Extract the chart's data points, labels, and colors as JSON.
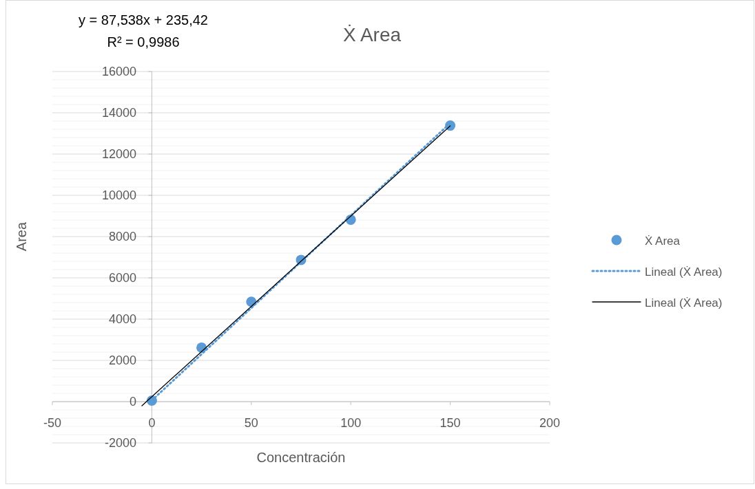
{
  "chart_data": {
    "type": "scatter",
    "title": "Ẋ Area",
    "xlabel": "Concentración",
    "ylabel": "Area",
    "annotations": [
      "y = 87,538x + 235,42",
      "R² = 0,9986"
    ],
    "x": [
      0,
      25,
      50,
      75,
      100,
      150
    ],
    "series": [
      {
        "name": "Ẋ Area",
        "color": "#5b9bd5",
        "marker": "circle",
        "values": [
          50,
          2620,
          4840,
          6870,
          8820,
          13380
        ]
      },
      {
        "name": "Lineal (Ẋ Area)",
        "type": "line",
        "color": "#5b9bd5",
        "line_style": "dotted",
        "marker": "none",
        "x": [
          0,
          150
        ],
        "values": [
          60,
          13500
        ]
      },
      {
        "name": "Lineal (Ẋ Area)",
        "type": "line",
        "color": "#000000",
        "line_style": "solid",
        "marker": "none",
        "x": [
          -5,
          150
        ],
        "values": [
          -200,
          13370
        ]
      }
    ],
    "xlim": [
      -50,
      200
    ],
    "xticks": [
      -50,
      0,
      50,
      100,
      150,
      200
    ],
    "ylim": [
      -2000,
      16000
    ],
    "yticks": [
      -2000,
      {
        "value": -1600,
        "label": null
      },
      {
        "value": -1200,
        "label": null
      },
      {
        "value": -800,
        "label": null
      },
      {
        "value": -400,
        "label": null
      },
      0,
      {
        "value": 400,
        "label": null
      },
      {
        "value": 800,
        "label": null
      },
      {
        "value": 1200,
        "label": null
      },
      {
        "value": 1600,
        "label": null
      },
      2000,
      {
        "value": 2400,
        "label": null
      },
      {
        "value": 2800,
        "label": null
      },
      {
        "value": 3200,
        "label": null
      },
      {
        "value": 3600,
        "label": null
      },
      4000,
      {
        "value": 4400,
        "label": null
      },
      {
        "value": 4800,
        "label": null
      },
      {
        "value": 5200,
        "label": null
      },
      {
        "value": 5600,
        "label": null
      },
      6000,
      {
        "value": 6400,
        "label": null
      },
      {
        "value": 6800,
        "label": null
      },
      {
        "value": 7200,
        "label": null
      },
      {
        "value": 7600,
        "label": null
      },
      8000,
      {
        "value": 8400,
        "label": null
      },
      {
        "value": 8800,
        "label": null
      },
      {
        "value": 9200,
        "label": null
      },
      {
        "value": 9600,
        "label": null
      },
      10000,
      {
        "value": 10400,
        "label": null
      },
      {
        "value": 10800,
        "label": null
      },
      {
        "value": 11200,
        "label": null
      },
      {
        "value": 11600,
        "label": null
      },
      12000,
      {
        "value": 12400,
        "label": null
      },
      {
        "value": 12800,
        "label": null
      },
      {
        "value": 13200,
        "label": null
      },
      {
        "value": 13600,
        "label": null
      },
      14000,
      {
        "value": 14400,
        "label": null
      },
      {
        "value": 14800,
        "label": null
      },
      {
        "value": 15200,
        "label": null
      },
      {
        "value": 15600,
        "label": null
      },
      16000
    ],
    "grid": "y",
    "legend": "right"
  }
}
